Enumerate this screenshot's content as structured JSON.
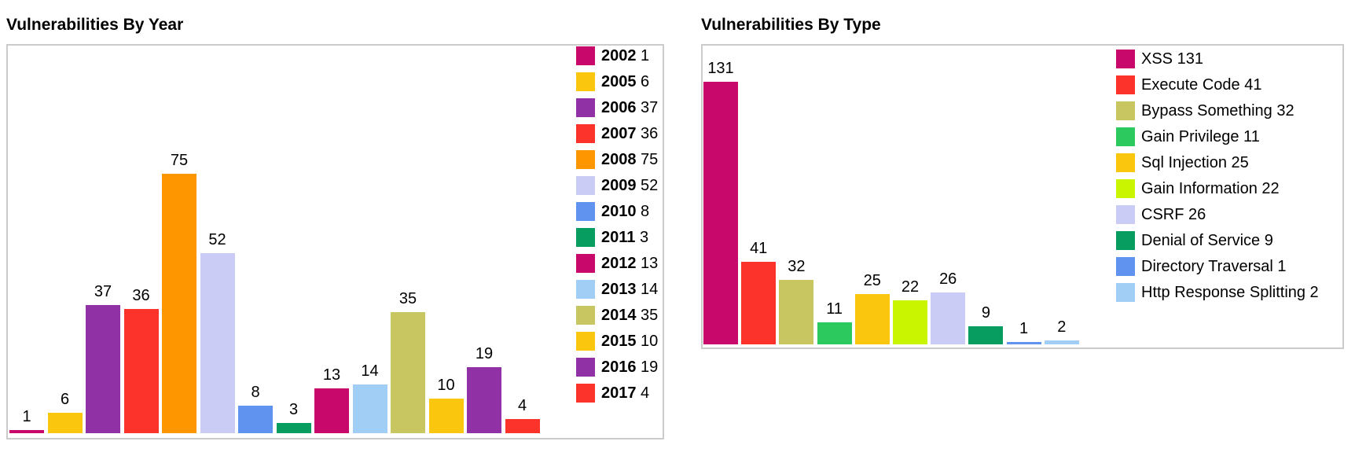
{
  "page": {
    "background": "#ffffff",
    "panel_border_color": "#cbcbcb"
  },
  "chart_data": [
    {
      "type": "bar",
      "title": "Vulnerabilities By Year",
      "categories": [
        "2002",
        "2005",
        "2006",
        "2007",
        "2008",
        "2009",
        "2010",
        "2011",
        "2012",
        "2013",
        "2014",
        "2015",
        "2016",
        "2017"
      ],
      "values": [
        1,
        6,
        37,
        36,
        75,
        52,
        8,
        3,
        13,
        14,
        35,
        10,
        19,
        4
      ],
      "colors": [
        "#C8096B",
        "#FAC60E",
        "#9031A5",
        "#FB332B",
        "#FE9600",
        "#CACCF5",
        "#6092F0",
        "#089D60",
        "#C8096B",
        "#A1CEF4",
        "#C7C661",
        "#FAC60E",
        "#9031A5",
        "#FB332B"
      ],
      "xlabel": "",
      "ylabel": "",
      "ylim": [
        0,
        113
      ],
      "grid": false,
      "axes_visible": false,
      "data_labels": true,
      "legend_position": "right-inside",
      "legend_bold_names": true
    },
    {
      "type": "bar",
      "title": "Vulnerabilities By Type",
      "categories": [
        "XSS",
        "Execute Code",
        "Bypass Something",
        "Gain Privilege",
        "Sql Injection",
        "Gain Information",
        "CSRF",
        "Denial of Service",
        "Directory Traversal",
        "Http Response Splitting"
      ],
      "values": [
        131,
        41,
        32,
        11,
        25,
        22,
        26,
        9,
        1,
        2
      ],
      "colors": [
        "#C8096B",
        "#FB332B",
        "#C7C661",
        "#2CC95F",
        "#FAC60E",
        "#C9F501",
        "#CACCF5",
        "#089D60",
        "#6092F0",
        "#A1CEF4"
      ],
      "xlabel": "",
      "ylabel": "",
      "ylim": [
        0,
        150
      ],
      "grid": false,
      "axes_visible": false,
      "data_labels": true,
      "legend_position": "right-inside",
      "legend_bold_names": false
    }
  ]
}
